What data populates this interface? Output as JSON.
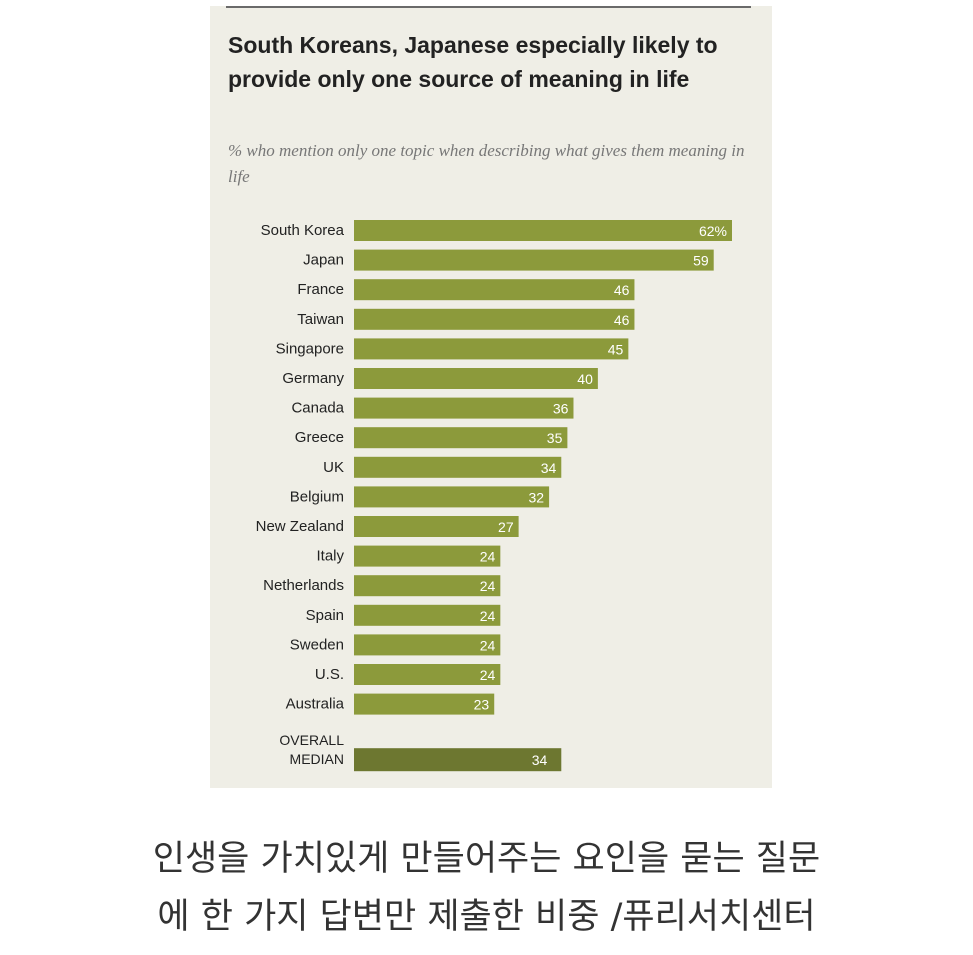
{
  "chart_data": {
    "type": "bar",
    "orientation": "horizontal",
    "title": "South Koreans, Japanese especially likely to provide only one source of meaning in life",
    "subtitle": "% who mention only one topic when describing what gives them meaning in life",
    "categories": [
      "South Korea",
      "Japan",
      "France",
      "Taiwan",
      "Singapore",
      "Germany",
      "Canada",
      "Greece",
      "UK",
      "Belgium",
      "New Zealand",
      "Italy",
      "Netherlands",
      "Spain",
      "Sweden",
      "U.S.",
      "Australia"
    ],
    "values": [
      62,
      59,
      46,
      46,
      45,
      40,
      36,
      35,
      34,
      32,
      27,
      24,
      24,
      24,
      24,
      24,
      23
    ],
    "value_labels": [
      "62%",
      "59",
      "46",
      "46",
      "45",
      "40",
      "36",
      "35",
      "34",
      "32",
      "27",
      "24",
      "24",
      "24",
      "24",
      "24",
      "23"
    ],
    "median": {
      "label_line1": "OVERALL",
      "label_line2": "MEDIAN",
      "value": 34,
      "value_label": "34"
    },
    "xlim": [
      0,
      62
    ],
    "bar_color": "#8c9a3b",
    "median_color": "#6d7730",
    "grid": false,
    "legend": "none"
  },
  "caption": {
    "line1": "인생을 가치있게 만들어주는 요인을 묻는 질문",
    "line2": "에 한 가지 답변만 제출한 비중 /퓨리서치센터"
  }
}
